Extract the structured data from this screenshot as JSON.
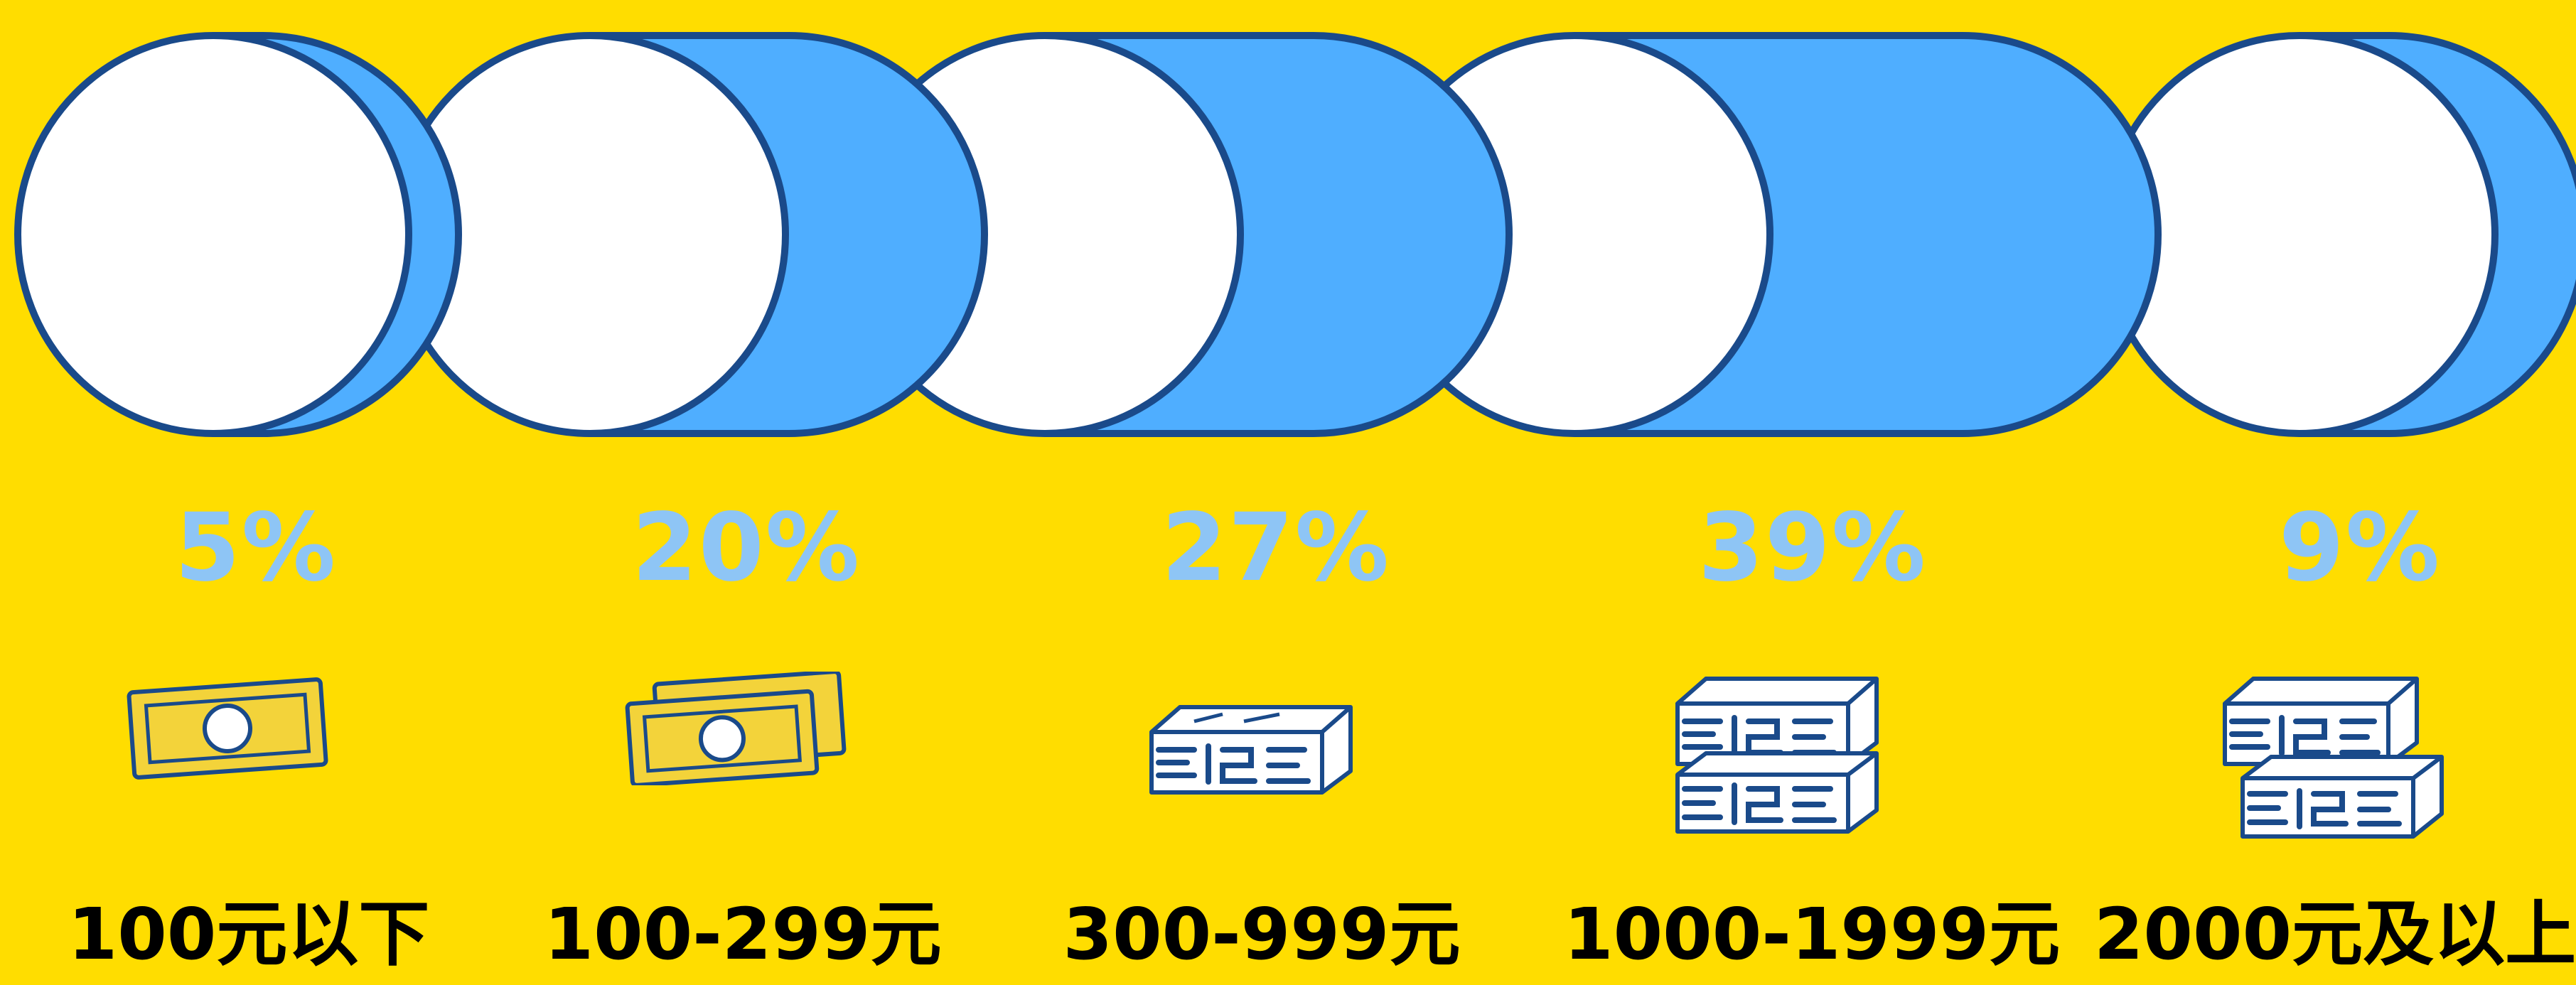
{
  "chart_data": {
    "type": "bar",
    "orientation": "horizontal-cylinder",
    "categories": [
      "100元以下",
      "100-299元",
      "300-999元",
      "1000-1999元",
      "2000元及以上"
    ],
    "values": [
      5,
      20,
      27,
      39,
      9
    ],
    "value_labels": [
      "5%",
      "20%",
      "27%",
      "39%",
      "9%"
    ],
    "money_icons": [
      "single-bill-icon",
      "two-bills-icon",
      "cash-bundle-icon",
      "two-cash-bundles-icon",
      "stacked-cash-bundles-icon"
    ],
    "title": "",
    "xlabel": "",
    "ylabel": ""
  },
  "colors": {
    "background": "#FFDD00",
    "cylinder_body": "#4FAEFF",
    "cylinder_face": "#FFFFFF",
    "outline": "#1A4A8A",
    "percent_text": "#8EC5F5",
    "category_text": "#000000",
    "bill_fill": "#F3D33A"
  }
}
